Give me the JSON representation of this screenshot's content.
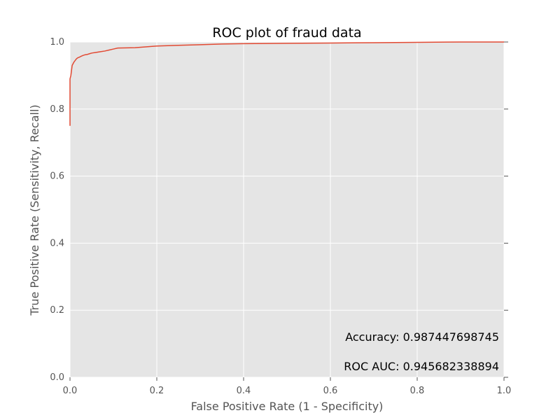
{
  "chart_data": {
    "type": "line",
    "title": "ROC plot of fraud data",
    "xlabel": "False Positive Rate (1 - Specificity)",
    "ylabel": "True Positive Rate (Sensitivity, Recall)",
    "xlim": [
      0.0,
      1.0
    ],
    "ylim": [
      0.0,
      1.0
    ],
    "xticks": [
      "0.0",
      "0.2",
      "0.4",
      "0.6",
      "0.8",
      "1.0"
    ],
    "yticks": [
      "0.0",
      "0.2",
      "0.4",
      "0.6",
      "0.8",
      "1.0"
    ],
    "grid": true,
    "colors": {
      "line": "#e24a33",
      "plot_bg": "#e5e5e5",
      "grid": "#ffffff"
    },
    "annotations": [
      "Accuracy: 0.987447698745",
      "ROC AUC: 0.945682338894"
    ],
    "series": [
      {
        "x": [
          0.0,
          0.0,
          0.0,
          0.0,
          0.002,
          0.003,
          0.005,
          0.007,
          0.009,
          0.012,
          0.015,
          0.018,
          0.022,
          0.025,
          0.03,
          0.035,
          0.04,
          0.045,
          0.05,
          0.06,
          0.07,
          0.08,
          0.09,
          0.1,
          0.11,
          0.15,
          0.2,
          0.25,
          0.3,
          0.35,
          0.4,
          0.5,
          0.6,
          0.7,
          0.8,
          0.9,
          1.0
        ],
        "y": [
          0.75,
          0.82,
          0.87,
          0.89,
          0.9,
          0.91,
          0.93,
          0.935,
          0.94,
          0.945,
          0.95,
          0.953,
          0.955,
          0.957,
          0.96,
          0.962,
          0.963,
          0.965,
          0.967,
          0.969,
          0.971,
          0.973,
          0.976,
          0.979,
          0.982,
          0.983,
          0.988,
          0.99,
          0.992,
          0.994,
          0.995,
          0.996,
          0.997,
          0.998,
          0.999,
          1.0,
          1.0
        ]
      }
    ]
  }
}
